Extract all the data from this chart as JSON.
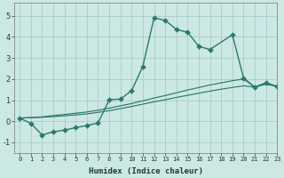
{
  "xlabel": "Humidex (Indice chaleur)",
  "bg_color": "#cce8e4",
  "grid_color": "#aaccc8",
  "line_color": "#2a7a68",
  "xlim": [
    -0.5,
    23
  ],
  "ylim": [
    -1.5,
    5.6
  ],
  "xticks": [
    0,
    1,
    2,
    3,
    4,
    5,
    6,
    7,
    8,
    9,
    10,
    11,
    12,
    13,
    14,
    15,
    16,
    17,
    18,
    19,
    20,
    21,
    22,
    23
  ],
  "yticks": [
    -1,
    0,
    1,
    2,
    3,
    4,
    5
  ],
  "line1_x": [
    0,
    1,
    2,
    3,
    4,
    5,
    6,
    7,
    8,
    9,
    10,
    11,
    12,
    13,
    14,
    15,
    16,
    17,
    19,
    20,
    21,
    22,
    23
  ],
  "line1_y": [
    0.15,
    -0.1,
    -0.65,
    -0.5,
    -0.42,
    -0.3,
    -0.2,
    -0.08,
    1.02,
    1.05,
    1.45,
    2.6,
    4.9,
    4.78,
    4.35,
    4.22,
    3.55,
    3.4,
    4.1,
    2.05,
    1.62,
    1.82,
    1.65
  ],
  "line2_x": [
    0,
    1,
    2,
    3,
    4,
    5,
    6,
    7,
    8,
    9,
    10,
    11,
    12,
    13,
    14,
    15,
    16,
    17,
    18,
    19,
    20,
    21,
    22,
    23
  ],
  "line2_y": [
    0.15,
    0.18,
    0.21,
    0.27,
    0.32,
    0.38,
    0.44,
    0.52,
    0.62,
    0.73,
    0.84,
    0.97,
    1.1,
    1.22,
    1.35,
    1.48,
    1.6,
    1.72,
    1.82,
    1.92,
    2.0,
    1.62,
    1.82,
    1.65
  ],
  "line3_x": [
    0,
    1,
    2,
    3,
    4,
    5,
    6,
    7,
    8,
    9,
    10,
    11,
    12,
    13,
    14,
    15,
    16,
    17,
    18,
    19,
    20,
    21,
    22,
    23
  ],
  "line3_y": [
    0.15,
    0.17,
    0.19,
    0.22,
    0.26,
    0.3,
    0.35,
    0.42,
    0.5,
    0.6,
    0.7,
    0.81,
    0.92,
    1.02,
    1.13,
    1.23,
    1.33,
    1.43,
    1.52,
    1.6,
    1.68,
    1.62,
    1.75,
    1.65
  ],
  "marker_size": 3,
  "line_width": 1.0
}
